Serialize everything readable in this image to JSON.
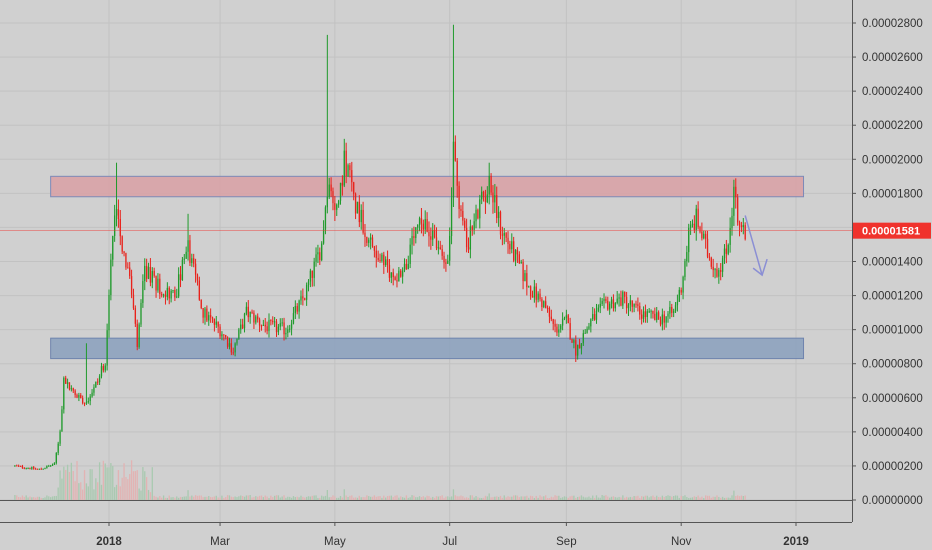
{
  "chart_data": {
    "type": "candlestick",
    "title": "",
    "xlabel": "",
    "ylabel": "",
    "y_range": [
      -1e-08,
      2.9e-06
    ],
    "x_range": [
      "2017-11-12",
      "2019-01-10"
    ],
    "grid": true,
    "y_ticks": [
      {
        "value": 0.0,
        "label": "0.00000000"
      },
      {
        "value": 2e-06,
        "label": "0.00000200"
      },
      {
        "value": 4e-06,
        "label": "0.00000400"
      },
      {
        "value": 6e-06,
        "label": "0.00000600"
      },
      {
        "value": 8e-06,
        "label": "0.00000800"
      },
      {
        "value": 1e-05,
        "label": "0.00001000"
      },
      {
        "value": 1.2e-05,
        "label": "0.00001200"
      },
      {
        "value": 1.4e-05,
        "label": "0.00001400"
      },
      {
        "value": 1.6e-05,
        "label": "0.00001600"
      },
      {
        "value": 1.8e-05,
        "label": "0.00001800"
      },
      {
        "value": 2e-05,
        "label": "0.00002000"
      },
      {
        "value": 2.2e-05,
        "label": "0.00002200"
      },
      {
        "value": 2.4e-05,
        "label": "0.00002400"
      },
      {
        "value": 2.6e-05,
        "label": "0.00002600"
      },
      {
        "value": 2.8e-05,
        "label": "0.00002800"
      }
    ],
    "x_ticks": [
      {
        "date": "2018-01-01",
        "label": "2018",
        "bold": true
      },
      {
        "date": "2018-03-01",
        "label": "Mar",
        "bold": false
      },
      {
        "date": "2018-05-01",
        "label": "May",
        "bold": false
      },
      {
        "date": "2018-07-01",
        "label": "Jul",
        "bold": false
      },
      {
        "date": "2018-09-01",
        "label": "Sep",
        "bold": false
      },
      {
        "date": "2018-11-01",
        "label": "Nov",
        "bold": false
      },
      {
        "date": "2019-01-01",
        "label": "2019",
        "bold": true
      }
    ],
    "price_path": [
      [
        "2017-11-12",
        2e-06
      ],
      [
        "2017-11-25",
        1.8e-06
      ],
      [
        "2017-12-03",
        2.1e-06
      ],
      [
        "2017-12-06",
        4e-06
      ],
      [
        "2017-12-08",
        7e-06
      ],
      [
        "2017-12-14",
        6.2e-06
      ],
      [
        "2017-12-20",
        5.8e-06
      ],
      [
        "2017-12-26",
        7e-06
      ],
      [
        "2017-12-30",
        8.2e-06
      ],
      [
        "2018-01-02",
        1.4e-05
      ],
      [
        "2018-01-05",
        1.76e-05
      ],
      [
        "2018-01-08",
        1.5e-05
      ],
      [
        "2018-01-12",
        1.3e-05
      ],
      [
        "2018-01-16",
        9e-06
      ],
      [
        "2018-01-20",
        1.35e-05
      ],
      [
        "2018-01-28",
        1.25e-05
      ],
      [
        "2018-02-05",
        1.2e-05
      ],
      [
        "2018-02-12",
        1.48e-05
      ],
      [
        "2018-02-20",
        1.1e-05
      ],
      [
        "2018-03-01",
        1e-05
      ],
      [
        "2018-03-08",
        8.8e-06
      ],
      [
        "2018-03-15",
        1.1e-05
      ],
      [
        "2018-03-25",
        1.02e-05
      ],
      [
        "2018-04-05",
        1e-05
      ],
      [
        "2018-04-15",
        1.2e-05
      ],
      [
        "2018-04-24",
        1.5e-05
      ],
      [
        "2018-04-27",
        1.85e-05
      ],
      [
        "2018-05-03",
        1.7e-05
      ],
      [
        "2018-05-06",
        2.02e-05
      ],
      [
        "2018-05-12",
        1.75e-05
      ],
      [
        "2018-05-20",
        1.5e-05
      ],
      [
        "2018-06-01",
        1.3e-05
      ],
      [
        "2018-06-08",
        1.38e-05
      ],
      [
        "2018-06-14",
        1.6e-05
      ],
      [
        "2018-06-22",
        1.58e-05
      ],
      [
        "2018-06-28",
        1.38e-05
      ],
      [
        "2018-07-01",
        1.5e-05
      ],
      [
        "2018-07-03",
        2.1e-05
      ],
      [
        "2018-07-06",
        1.75e-05
      ],
      [
        "2018-07-10",
        1.5e-05
      ],
      [
        "2018-07-18",
        1.75e-05
      ],
      [
        "2018-07-22",
        1.85e-05
      ],
      [
        "2018-07-28",
        1.6e-05
      ],
      [
        "2018-08-05",
        1.42e-05
      ],
      [
        "2018-08-12",
        1.25e-05
      ],
      [
        "2018-08-20",
        1.15e-05
      ],
      [
        "2018-08-26",
        1e-05
      ],
      [
        "2018-09-01",
        1.05e-05
      ],
      [
        "2018-09-06",
        8.8e-06
      ],
      [
        "2018-09-14",
        1.05e-05
      ],
      [
        "2018-09-22",
        1.15e-05
      ],
      [
        "2018-10-01",
        1.18e-05
      ],
      [
        "2018-10-10",
        1.1e-05
      ],
      [
        "2018-10-20",
        1.06e-05
      ],
      [
        "2018-10-28",
        1.1e-05
      ],
      [
        "2018-11-01",
        1.25e-05
      ],
      [
        "2018-11-05",
        1.56e-05
      ],
      [
        "2018-11-09",
        1.65e-05
      ],
      [
        "2018-11-15",
        1.45e-05
      ],
      [
        "2018-11-20",
        1.35e-05
      ],
      [
        "2018-11-25",
        1.45e-05
      ],
      [
        "2018-11-29",
        1.8e-05
      ],
      [
        "2018-12-02",
        1.62e-05
      ],
      [
        "2018-12-05",
        1.581e-05
      ]
    ],
    "wick_spikes": [
      {
        "date": "2017-12-20",
        "high": 9.2e-06
      },
      {
        "date": "2018-01-05",
        "high": 1.98e-05
      },
      {
        "date": "2018-02-12",
        "high": 1.68e-05
      },
      {
        "date": "2018-04-27",
        "high": 2.73e-05
      },
      {
        "date": "2018-05-06",
        "high": 2.12e-05
      },
      {
        "date": "2018-07-03",
        "high": 2.79e-05
      },
      {
        "date": "2018-07-22",
        "high": 1.98e-05
      },
      {
        "date": "2018-11-29",
        "high": 1.88e-05
      },
      {
        "date": "2018-09-06",
        "low": 8.1e-06
      },
      {
        "date": "2018-03-08",
        "low": 8.5e-06
      }
    ],
    "zones": [
      {
        "name": "resistance-zone",
        "start": "2017-12-01",
        "end": "2019-01-05",
        "low": 1.78e-05,
        "high": 1.9e-05,
        "fill": "#d9a0a4",
        "stroke": "#7b8ab8"
      },
      {
        "name": "support-zone",
        "start": "2017-12-01",
        "end": "2019-01-05",
        "low": 8.3e-06,
        "high": 9.5e-06,
        "fill": "#8aa0bd",
        "stroke": "#6f84ad"
      }
    ],
    "current_price": {
      "value": 1.581e-05,
      "label": "0.00001581",
      "color": "#f0322c"
    },
    "projection_arrow": {
      "from_date": "2018-12-05",
      "from_value": 1.67e-05,
      "to_date": "2018-12-14",
      "to_value": 1.32e-05,
      "color": "#8b8fd4"
    },
    "volume_color_up": "#a9c9b0",
    "volume_color_down": "#e2b3b3",
    "colors": {
      "up": "#1f9a2b",
      "down": "#e8221b",
      "background": "#d0d0d0",
      "grid": "#c2c2c2",
      "axis": "#555555"
    }
  }
}
